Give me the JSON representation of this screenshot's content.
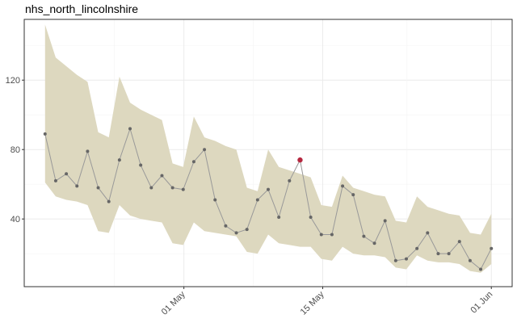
{
  "chart_data": {
    "type": "line",
    "title": "nhs_north_lincolnshire",
    "xlabel": "",
    "ylabel": "",
    "x_ticks": [
      {
        "label": "01 May",
        "day": 14
      },
      {
        "label": "15 May",
        "day": 28
      },
      {
        "label": "01 Jun",
        "day": 45
      }
    ],
    "y_ticks": [
      40,
      80,
      120
    ],
    "xlim": [
      -2.1,
      47.1
    ],
    "ylim": [
      1,
      155
    ],
    "grid": true,
    "x_dates": [
      "2020-04-17",
      "2020-04-18",
      "2020-04-19",
      "2020-04-20",
      "2020-04-21",
      "2020-04-22",
      "2020-04-23",
      "2020-04-24",
      "2020-04-25",
      "2020-04-26",
      "2020-04-27",
      "2020-04-28",
      "2020-04-29",
      "2020-04-30",
      "2020-05-01",
      "2020-05-02",
      "2020-05-03",
      "2020-05-04",
      "2020-05-05",
      "2020-05-06",
      "2020-05-07",
      "2020-05-08",
      "2020-05-09",
      "2020-05-10",
      "2020-05-11",
      "2020-05-12",
      "2020-05-13",
      "2020-05-14",
      "2020-05-15",
      "2020-05-16",
      "2020-05-17",
      "2020-05-18",
      "2020-05-19",
      "2020-05-20",
      "2020-05-21",
      "2020-05-22",
      "2020-05-23",
      "2020-05-24",
      "2020-05-25",
      "2020-05-26",
      "2020-05-27",
      "2020-05-28",
      "2020-05-29",
      "2020-05-30",
      "2020-05-31",
      "2020-06-01"
    ],
    "series": [
      {
        "values": [
          89,
          62,
          66,
          59,
          79,
          58,
          50,
          74,
          92,
          71,
          58,
          65,
          58,
          57,
          73,
          80,
          51,
          36,
          32,
          34,
          51,
          57,
          41,
          62,
          74,
          41,
          31,
          31,
          59,
          54,
          30,
          26,
          39,
          16,
          17,
          23,
          32,
          20,
          20,
          27,
          16,
          11,
          23
        ],
        "color": "#8c8c8c"
      }
    ],
    "band": {
      "upper": [
        152,
        133,
        128,
        123,
        119,
        90,
        87,
        122,
        107,
        103,
        100,
        97,
        72,
        70,
        99,
        87,
        85,
        82,
        80,
        58,
        56,
        80,
        70,
        68,
        66,
        64,
        48,
        47,
        65,
        58,
        56,
        54,
        53,
        39,
        38,
        53,
        47,
        45,
        43,
        42,
        32,
        31,
        43
      ],
      "lower": [
        61,
        53,
        51,
        50,
        48,
        33,
        32,
        48,
        42,
        40,
        39,
        38,
        26,
        25,
        38,
        33,
        32,
        31,
        30,
        21,
        20,
        31,
        26,
        25,
        24,
        24,
        17,
        16,
        24,
        20,
        19,
        19,
        18,
        12,
        11,
        19,
        16,
        15,
        15,
        14,
        10,
        9,
        14
      ],
      "color": "#ddd8bf"
    },
    "highlight": {
      "index": 24,
      "value": 74,
      "color": "#b5273f"
    }
  }
}
